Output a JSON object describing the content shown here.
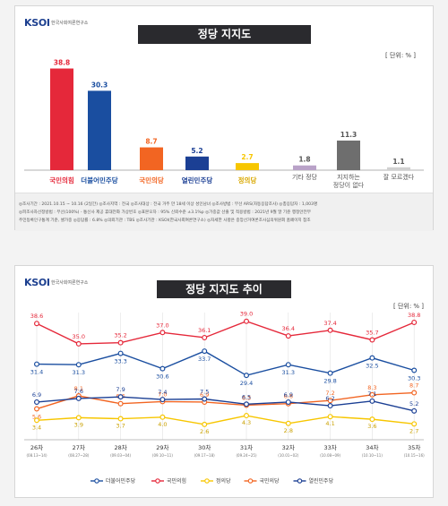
{
  "brand": {
    "logo": "KSOI",
    "logo_sub": "한국사회여론연구소"
  },
  "panel1": {
    "title": "정당 지지도",
    "unit": "[ 단위: % ]",
    "footer": [
      "◎조사기간 : 2021.10.15 ~ 10.16 (2일간)   ◎조사지역 : 전국   ◎조사대상 : 전국 거주 만 18세 이상 성인남녀   ◎조사방법 : 무선 ARS(자동응답조사)   ◎총응답자 : 1,003명",
      "◎피조사자선정방법 : 무선(100%) - 통신사 제공 휴대전화 가상번호   ◎표본오차 : 95% 신뢰수준 ±3.1%p   ◎가중값 산출 및 적용방법 : 2021년 9월 말 기준 행정안전부",
      "주민등록인구통계 기준, 셀가중   ◎응답률 : 6.8%   ◎의뢰기관 : TBS   ◎조사기관 : KSOI(한국사회여론연구소)   ◎자세한 사항은 중앙선거여론조사심의위원회 홈페이지 참조"
    ],
    "party_labels": [
      "국민의힘",
      "더불어민주당",
      "국민의당",
      "열린민주당",
      "정의당"
    ],
    "other_labels": [
      "기타 정당",
      "지지하는\n정당이 없다",
      "잘 모르겠다"
    ]
  },
  "panel2": {
    "title": "정당 지지도 추이",
    "unit": "[ 단위: % ]"
  },
  "chart_data": [
    {
      "type": "bar",
      "title": "정당 지지도",
      "categories": [
        "국민의힘",
        "더불어민주당",
        "국민의당",
        "열린민주당",
        "정의당",
        "기타 정당",
        "지지하는 정당이 없다",
        "잘 모르겠다"
      ],
      "values": [
        38.8,
        30.3,
        8.7,
        5.2,
        2.7,
        1.8,
        11.3,
        1.1
      ],
      "colors": [
        "#e5283a",
        "#1a4ea0",
        "#f26522",
        "#1b3f94",
        "#f7c600",
        "#b9a2c8",
        "#6e6e6e",
        "#d0d0d0"
      ],
      "ylim": [
        0,
        40
      ]
    },
    {
      "type": "line",
      "title": "정당 지지도 추이",
      "categories": [
        "26차",
        "27차",
        "28차",
        "29차",
        "30차",
        "31차",
        "32차",
        "33차",
        "34차",
        "35차"
      ],
      "dates": [
        "08.13~14",
        "08.27~28",
        "09.03~04",
        "09.10~11",
        "09.17~18",
        "09.24~25",
        "10.01~02",
        "10.08~09",
        "10.10~11",
        "10.15~16"
      ],
      "series": [
        {
          "name": "더불어민주당",
          "color": "#1a4ea0",
          "values": [
            31.4,
            31.3,
            33.3,
            30.6,
            33.7,
            29.4,
            31.3,
            29.8,
            32.5,
            30.3
          ]
        },
        {
          "name": "국민의힘",
          "color": "#e5283a",
          "values": [
            38.6,
            35.0,
            35.2,
            37.0,
            36.1,
            39.0,
            36.4,
            37.4,
            35.7,
            38.8
          ]
        },
        {
          "name": "정의당",
          "color": "#f7c600",
          "values": [
            3.4,
            3.9,
            3.7,
            4.0,
            2.6,
            4.3,
            2.8,
            4.1,
            3.6,
            2.7
          ]
        },
        {
          "name": "국민의당",
          "color": "#f26522",
          "values": [
            5.6,
            8.1,
            6.6,
            7.0,
            6.9,
            6.3,
            6.6,
            7.2,
            8.3,
            8.7
          ]
        },
        {
          "name": "열린민주당",
          "color": "#1b3f94",
          "values": [
            6.9,
            7.6,
            7.9,
            7.4,
            7.5,
            6.5,
            6.9,
            6.2,
            7.1,
            5.2
          ]
        }
      ]
    }
  ]
}
